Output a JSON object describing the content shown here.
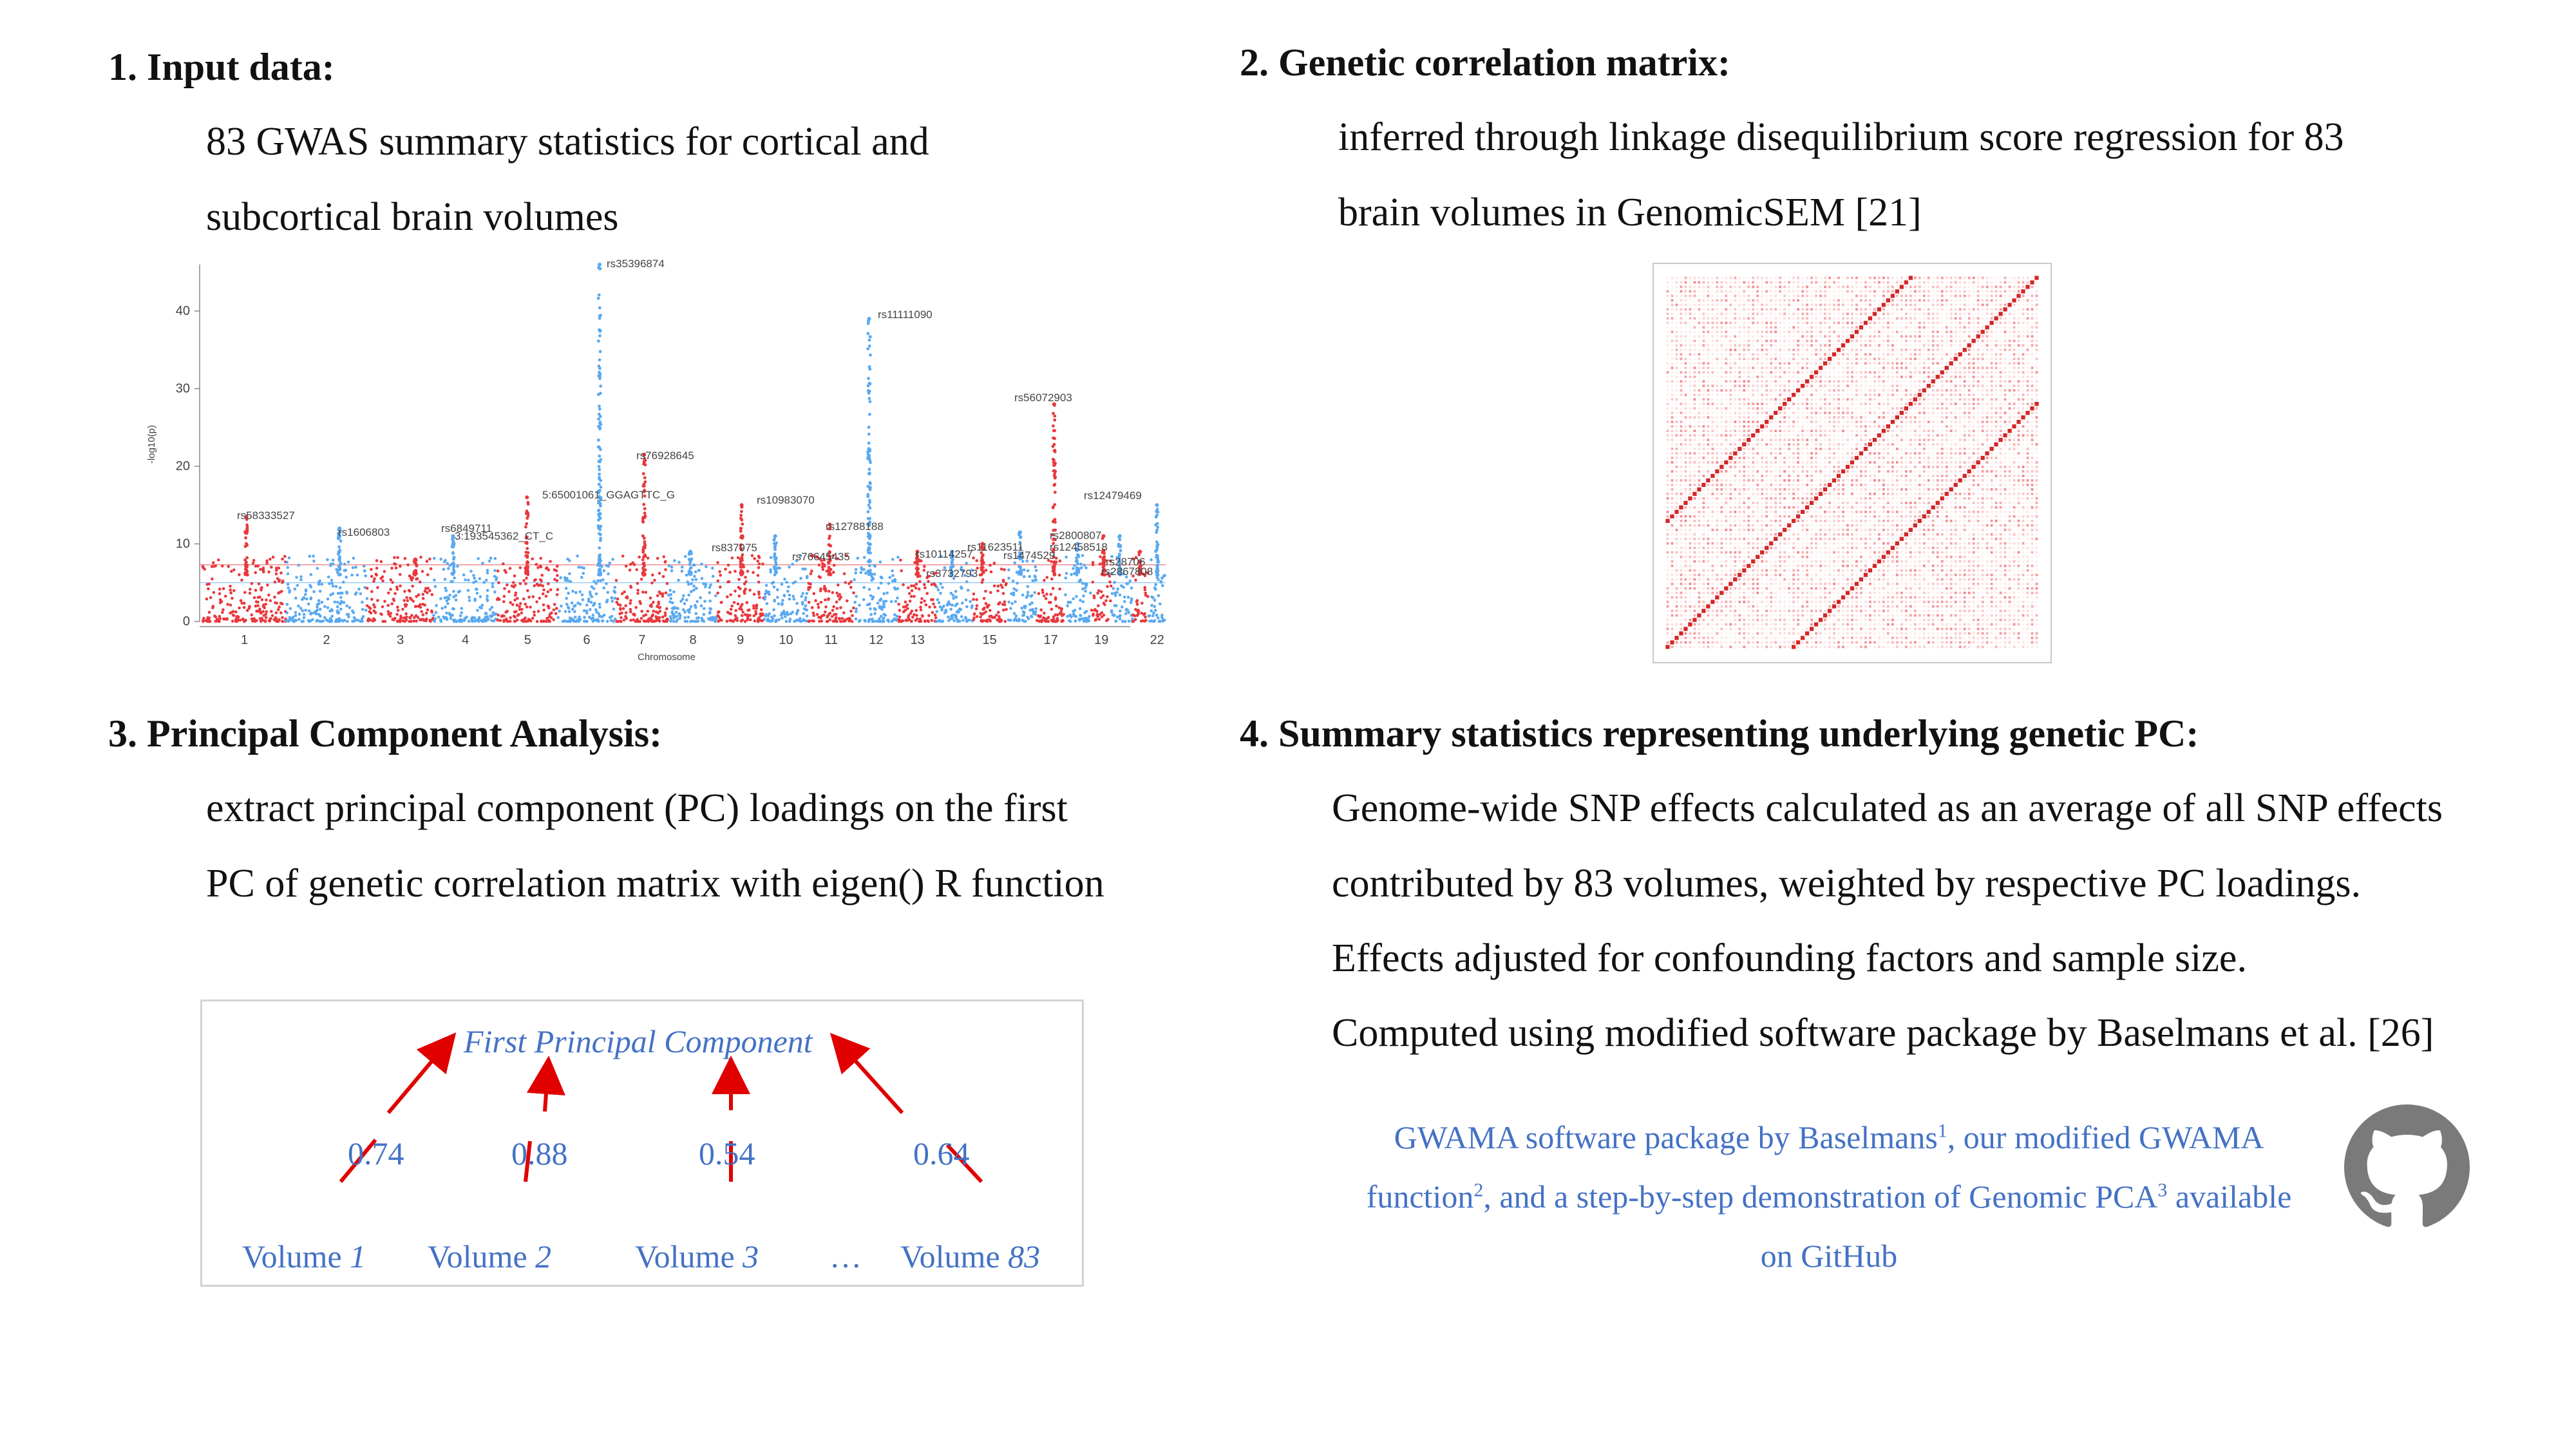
{
  "sections": {
    "s1": {
      "heading": "1. Input data:",
      "lines": [
        "83 GWAS summary statistics for cortical and",
        "subcortical brain volumes"
      ]
    },
    "s2": {
      "heading": "2. Genetic correlation matrix:",
      "lines": [
        "inferred through linkage disequilibrium score regression for 83",
        "brain volumes in GenomicSEM [21]"
      ]
    },
    "s3": {
      "heading": "3. Principal Component Analysis:",
      "lines": [
        "extract principal component (PC) loadings on the first",
        "PC of genetic correlation matrix with eigen() R function"
      ]
    },
    "s4": {
      "heading": "4. Summary statistics representing underlying genetic PC:",
      "lines": [
        "Genome-wide SNP effects calculated as an average of all SNP effects",
        "contributed by 83 volumes, weighted by respective PC loadings.",
        "Effects adjusted for confounding factors and sample size.",
        "Computed using modified software package by Baselmans et al. [26]"
      ]
    }
  },
  "manhattan": {
    "ylabel": "-log10(p)",
    "xlabel": "Chromosome",
    "yticks": [
      "0",
      "10",
      "20",
      "30",
      "40"
    ],
    "chromosomes": [
      "1",
      "2",
      "3",
      "4",
      "5",
      "6",
      "7",
      "8",
      "9",
      "10",
      "11",
      "12",
      "13",
      "15",
      "17",
      "19",
      "22"
    ],
    "snp_labels": [
      "rs35396874",
      "rs11111090",
      "rs56072903",
      "rs76928645",
      "rs12479469",
      "rs10983070",
      "5:65001061_GGAGTTC_G",
      "rs58333527",
      "rs1606803",
      "rs6849711",
      "3:193545362_CT_C",
      "rs12788188",
      "rs837975",
      "rs2800807",
      "rs10114257",
      "rs11623511",
      "rs1474529",
      "rs12458518",
      "rs28706",
      "rs2867808",
      "rs76645435",
      "rs3732793"
    ],
    "colors": {
      "odd": "#E8393E",
      "even": "#5AA9F0"
    }
  },
  "matrix": {
    "cell_color": "#E8393E",
    "diag_color": "#D21A1A"
  },
  "pca": {
    "title": "First Principal Component",
    "loadings": [
      "0.74",
      "0.88",
      "0.54",
      "0.64"
    ],
    "volumes": [
      {
        "name": "Volume",
        "num": "1"
      },
      {
        "name": "Volume",
        "num": "2"
      },
      {
        "name": "Volume",
        "num": "3"
      },
      {
        "name": "Volume",
        "num": "83"
      }
    ],
    "ellipsis": "…"
  },
  "github": {
    "t1": "GWAMA software package by Baselmans",
    "s1": "1",
    "t2": ", our modified GWAMA",
    "t3": "function",
    "s2": "2",
    "t4": ", and a step-by-step demonstration of Genomic PCA",
    "s3": "3",
    "t5": " available",
    "t6": "on GitHub"
  }
}
